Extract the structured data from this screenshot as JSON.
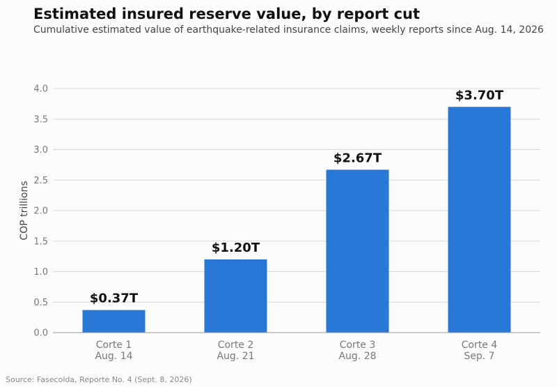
{
  "title": "Estimated insured reserve value, by report cut",
  "subtitle": "Cumulative estimated value of earthquake-related insurance claims, weekly reports since Aug. 14, 2026",
  "source": "Source: Fasecolda, Reporte No. 4 (Sept. 8, 2026)",
  "colors": {
    "bar": "#2a78d6",
    "grid": "#d8d8d8",
    "axis": "#999999"
  },
  "chart_data": {
    "type": "bar",
    "title": "Estimated insured reserve value, by report cut",
    "subtitle": "Cumulative estimated value of earthquake-related insurance claims, weekly reports since Aug. 14, 2026",
    "ylabel": "COP trillions",
    "xlabel": "",
    "ylim": [
      0,
      4.0
    ],
    "yticks": [
      "0.0",
      "0.5",
      "1.0",
      "1.5",
      "2.0",
      "2.5",
      "3.0",
      "3.5",
      "4.0"
    ],
    "categories": [
      [
        "Corte 1",
        "Aug. 14"
      ],
      [
        "Corte 2",
        "Aug. 21"
      ],
      [
        "Corte 3",
        "Aug. 28"
      ],
      [
        "Corte 4",
        "Sep. 7"
      ]
    ],
    "values": [
      0.37,
      1.2,
      2.67,
      3.7
    ],
    "value_labels": [
      "$0.37T",
      "$1.20T",
      "$2.67T",
      "$3.70T"
    ],
    "grid": true,
    "legend": "none"
  }
}
